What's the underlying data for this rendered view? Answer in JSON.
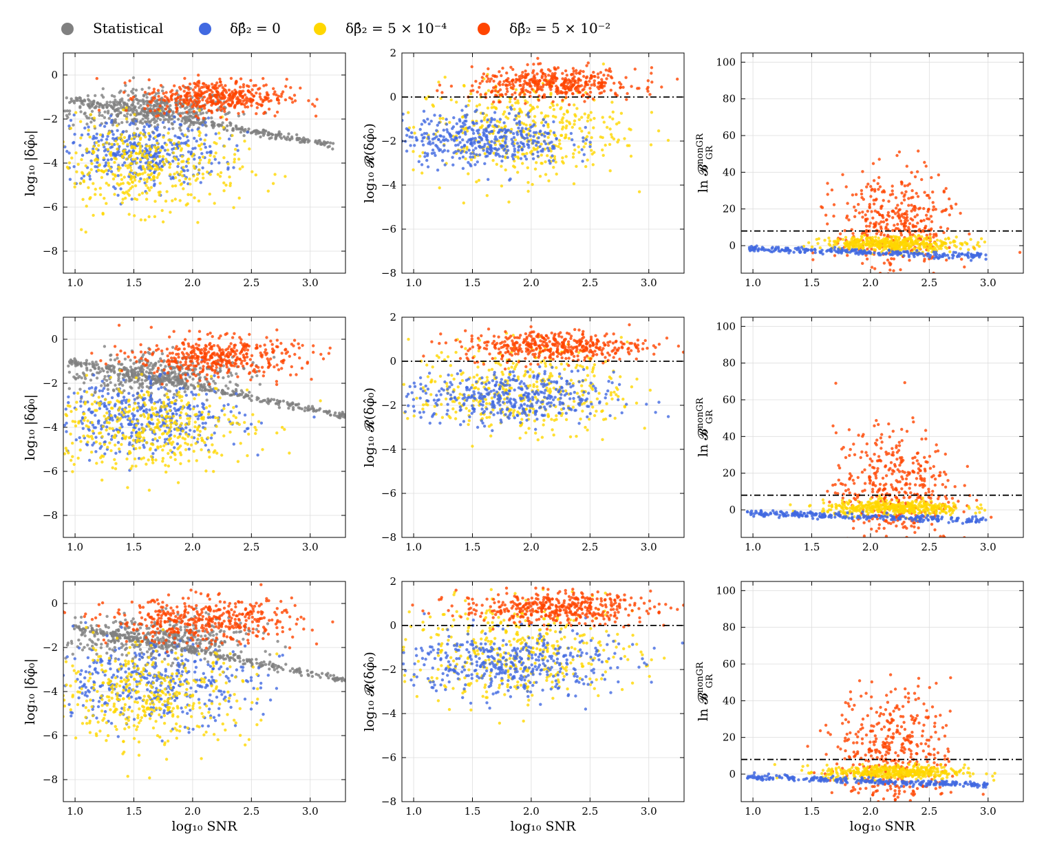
{
  "colors": {
    "statistical": "#808080",
    "beta0": "#4169e1",
    "beta5e-4": "#ffd700",
    "beta5e-2": "#ff4500",
    "grid": "#dddddd",
    "threshold_line": "#000000"
  },
  "legend": {
    "items": [
      {
        "key": "statistical",
        "label": "Statistical"
      },
      {
        "key": "beta0",
        "label": "δβ̂₂ = 0"
      },
      {
        "key": "beta5e-4",
        "label": "δβ̂₂ = 5 × 10⁻⁴"
      },
      {
        "key": "beta5e-2",
        "label": "δβ̂₂ = 5 × 10⁻²"
      }
    ],
    "placement": "top"
  },
  "axis_text": {
    "xlabel": "log₁₀ SNR",
    "ylabel_abs": "log₁₀ |δφ̂₀|",
    "ylabel_ratio": "log₁₀ 𝓡(δφ̂₀)",
    "ylabel_bayes": "ln 𝓑",
    "ylabel_bayes_sup": "nonGR",
    "ylabel_bayes_sub": "GR"
  },
  "chart_data": [
    {
      "type": "scatter",
      "panel": "row1-col1",
      "xlim": [
        0.9,
        3.3
      ],
      "ylim": [
        -9,
        1
      ],
      "xticks": [
        "1.0",
        "1.5",
        "2.0",
        "2.5",
        "3.0"
      ],
      "yticks": [
        "0",
        "−2",
        "−4",
        "−6",
        "−8"
      ],
      "grid": true,
      "series": [
        {
          "name": "Statistical",
          "clouds": [
            {
              "x": 1.65,
              "y": -1.6,
              "sx": 0.35,
              "sy": 0.45
            }
          ],
          "line": {
            "x": [
              0.95,
              3.2
            ],
            "y": [
              -1.1,
              -3.2
            ]
          }
        },
        {
          "name": "δβ̂₂ = 0",
          "clouds": [
            {
              "x": 1.55,
              "y": -3.5,
              "sx": 0.35,
              "sy": 0.75
            }
          ]
        },
        {
          "name": "δβ̂₂ = 5 × 10⁻⁴",
          "clouds": [
            {
              "x": 1.6,
              "y": -4.2,
              "sx": 0.4,
              "sy": 1.0
            }
          ]
        },
        {
          "name": "δβ̂₂ = 5 × 10⁻²",
          "clouds": [
            {
              "x": 2.2,
              "y": -1.0,
              "sx": 0.3,
              "sy": 0.4
            }
          ]
        }
      ]
    },
    {
      "type": "scatter",
      "panel": "row1-col2",
      "xlim": [
        0.9,
        3.3
      ],
      "ylim": [
        -8,
        2
      ],
      "xticks": [
        "1.0",
        "1.5",
        "2.0",
        "2.5",
        "3.0"
      ],
      "yticks": [
        "2",
        "0",
        "−2",
        "−4",
        "−6",
        "−8"
      ],
      "grid": true,
      "hline": 0,
      "series": [
        {
          "name": "δβ̂₂ = 5 × 10⁻⁴",
          "clouds": [
            {
              "x": 1.9,
              "y": -1.5,
              "sx": 0.45,
              "sy": 1.1
            }
          ]
        },
        {
          "name": "δβ̂₂ = 0",
          "clouds": [
            {
              "x": 1.6,
              "y": -1.9,
              "sx": 0.35,
              "sy": 0.6
            }
          ]
        },
        {
          "name": "δβ̂₂ = 5 × 10⁻²",
          "clouds": [
            {
              "x": 2.2,
              "y": 0.6,
              "sx": 0.35,
              "sy": 0.35
            }
          ]
        }
      ]
    },
    {
      "type": "scatter",
      "panel": "row1-col3",
      "xlim": [
        0.9,
        3.3
      ],
      "ylim": [
        -15,
        105
      ],
      "xticks": [
        "1.0",
        "1.5",
        "2.0",
        "2.5",
        "3.0"
      ],
      "yticks": [
        "100",
        "80",
        "60",
        "40",
        "20",
        "0"
      ],
      "grid": true,
      "hline": 8,
      "series": [
        {
          "name": "δβ̂₂ = 5 × 10⁻²",
          "clouds": [
            {
              "x": 2.2,
              "y": 10,
              "sx": 0.25,
              "sy": 15
            }
          ]
        },
        {
          "name": "δβ̂₂ = 5 × 10⁻⁴",
          "clouds": [
            {
              "x": 2.2,
              "y": 1,
              "sx": 0.3,
              "sy": 2
            }
          ]
        },
        {
          "name": "δβ̂₂ = 0",
          "line": {
            "x": [
              0.95,
              3.0
            ],
            "y": [
              -1.5,
              -6
            ]
          }
        }
      ]
    },
    {
      "type": "scatter",
      "panel": "row2-col1",
      "xlim": [
        0.9,
        3.3
      ],
      "ylim": [
        -9,
        1
      ],
      "xticks": [
        "1.0",
        "1.5",
        "2.0",
        "2.5",
        "3.0"
      ],
      "yticks": [
        "0",
        "−2",
        "−4",
        "−6",
        "−8"
      ],
      "grid": true,
      "series": [
        {
          "name": "Statistical",
          "clouds": [
            {
              "x": 1.7,
              "y": -1.6,
              "sx": 0.4,
              "sy": 0.45
            }
          ],
          "line": {
            "x": [
              0.95,
              3.3
            ],
            "y": [
              -1.0,
              -3.5
            ]
          }
        },
        {
          "name": "δβ̂₂ = 0",
          "clouds": [
            {
              "x": 1.6,
              "y": -3.6,
              "sx": 0.4,
              "sy": 0.8
            }
          ]
        },
        {
          "name": "δβ̂₂ = 5 × 10⁻⁴",
          "clouds": [
            {
              "x": 1.6,
              "y": -4.0,
              "sx": 0.45,
              "sy": 1.0
            }
          ]
        },
        {
          "name": "δβ̂₂ = 5 × 10⁻²",
          "clouds": [
            {
              "x": 2.2,
              "y": -0.8,
              "sx": 0.35,
              "sy": 0.45
            }
          ]
        }
      ]
    },
    {
      "type": "scatter",
      "panel": "row2-col2",
      "xlim": [
        0.9,
        3.3
      ],
      "ylim": [
        -8,
        2
      ],
      "xticks": [
        "1.0",
        "1.5",
        "2.0",
        "2.5",
        "3.0"
      ],
      "yticks": [
        "2",
        "0",
        "−2",
        "−4",
        "−6",
        "−8"
      ],
      "grid": true,
      "hline": 0,
      "series": [
        {
          "name": "δβ̂₂ = 5 × 10⁻⁴",
          "clouds": [
            {
              "x": 1.9,
              "y": -1.3,
              "sx": 0.45,
              "sy": 1.0
            }
          ]
        },
        {
          "name": "δβ̂₂ = 0",
          "clouds": [
            {
              "x": 1.8,
              "y": -1.7,
              "sx": 0.45,
              "sy": 0.6
            }
          ]
        },
        {
          "name": "δβ̂₂ = 5 × 10⁻²",
          "clouds": [
            {
              "x": 2.2,
              "y": 0.7,
              "sx": 0.4,
              "sy": 0.35
            }
          ]
        }
      ]
    },
    {
      "type": "scatter",
      "panel": "row2-col3",
      "xlim": [
        0.9,
        3.3
      ],
      "ylim": [
        -15,
        105
      ],
      "xticks": [
        "1.0",
        "1.5",
        "2.0",
        "2.5",
        "3.0"
      ],
      "yticks": [
        "100",
        "80",
        "60",
        "40",
        "20",
        "0"
      ],
      "grid": true,
      "hline": 8,
      "series": [
        {
          "name": "δβ̂₂ = 5 × 10⁻²",
          "clouds": [
            {
              "x": 2.2,
              "y": 12,
              "sx": 0.25,
              "sy": 16
            }
          ]
        },
        {
          "name": "δβ̂₂ = 5 × 10⁻⁴",
          "clouds": [
            {
              "x": 2.2,
              "y": 1,
              "sx": 0.3,
              "sy": 2
            }
          ]
        },
        {
          "name": "δβ̂₂ = 0",
          "line": {
            "x": [
              0.95,
              3.0
            ],
            "y": [
              -1.5,
              -6
            ]
          }
        }
      ]
    },
    {
      "type": "scatter",
      "panel": "row3-col1",
      "xlim": [
        0.9,
        3.3
      ],
      "ylim": [
        -9,
        1
      ],
      "xticks": [
        "1.0",
        "1.5",
        "2.0",
        "2.5",
        "3.0"
      ],
      "yticks": [
        "0",
        "−2",
        "−4",
        "−6",
        "−8"
      ],
      "grid": true,
      "series": [
        {
          "name": "Statistical",
          "clouds": [
            {
              "x": 1.7,
              "y": -1.6,
              "sx": 0.4,
              "sy": 0.5
            }
          ],
          "line": {
            "x": [
              0.95,
              3.3
            ],
            "y": [
              -1.0,
              -3.5
            ]
          }
        },
        {
          "name": "δβ̂₂ = 0",
          "clouds": [
            {
              "x": 1.65,
              "y": -3.6,
              "sx": 0.45,
              "sy": 0.9
            }
          ]
        },
        {
          "name": "δβ̂₂ = 5 × 10⁻⁴",
          "clouds": [
            {
              "x": 1.6,
              "y": -4.2,
              "sx": 0.45,
              "sy": 1.1
            }
          ]
        },
        {
          "name": "δβ̂₂ = 5 × 10⁻²",
          "clouds": [
            {
              "x": 2.1,
              "y": -0.8,
              "sx": 0.4,
              "sy": 0.5
            }
          ]
        }
      ]
    },
    {
      "type": "scatter",
      "panel": "row3-col2",
      "xlim": [
        0.9,
        3.3
      ],
      "ylim": [
        -8,
        2
      ],
      "xticks": [
        "1.0",
        "1.5",
        "2.0",
        "2.5",
        "3.0"
      ],
      "yticks": [
        "2",
        "0",
        "−2",
        "−4",
        "−6",
        "−8"
      ],
      "grid": true,
      "hline": 0,
      "series": [
        {
          "name": "δβ̂₂ = 5 × 10⁻⁴",
          "clouds": [
            {
              "x": 1.9,
              "y": -1.2,
              "sx": 0.5,
              "sy": 1.1
            }
          ]
        },
        {
          "name": "δβ̂₂ = 0",
          "clouds": [
            {
              "x": 1.8,
              "y": -1.7,
              "sx": 0.45,
              "sy": 0.75
            }
          ]
        },
        {
          "name": "δβ̂₂ = 5 × 10⁻²",
          "clouds": [
            {
              "x": 2.2,
              "y": 0.8,
              "sx": 0.4,
              "sy": 0.35
            }
          ]
        }
      ]
    },
    {
      "type": "scatter",
      "panel": "row3-col3",
      "xlim": [
        0.9,
        3.3
      ],
      "ylim": [
        -15,
        105
      ],
      "xticks": [
        "1.0",
        "1.5",
        "2.0",
        "2.5",
        "3.0"
      ],
      "yticks": [
        "100",
        "80",
        "60",
        "40",
        "20",
        "0"
      ],
      "grid": true,
      "hline": 8,
      "series": [
        {
          "name": "δβ̂₂ = 5 × 10⁻²",
          "clouds": [
            {
              "x": 2.2,
              "y": 12,
              "sx": 0.25,
              "sy": 17
            }
          ]
        },
        {
          "name": "δβ̂₂ = 5 × 10⁻⁴",
          "clouds": [
            {
              "x": 2.2,
              "y": 1,
              "sx": 0.3,
              "sy": 2
            }
          ]
        },
        {
          "name": "δβ̂₂ = 0",
          "line": {
            "x": [
              0.95,
              3.0
            ],
            "y": [
              -1.5,
              -6
            ]
          }
        }
      ]
    }
  ]
}
